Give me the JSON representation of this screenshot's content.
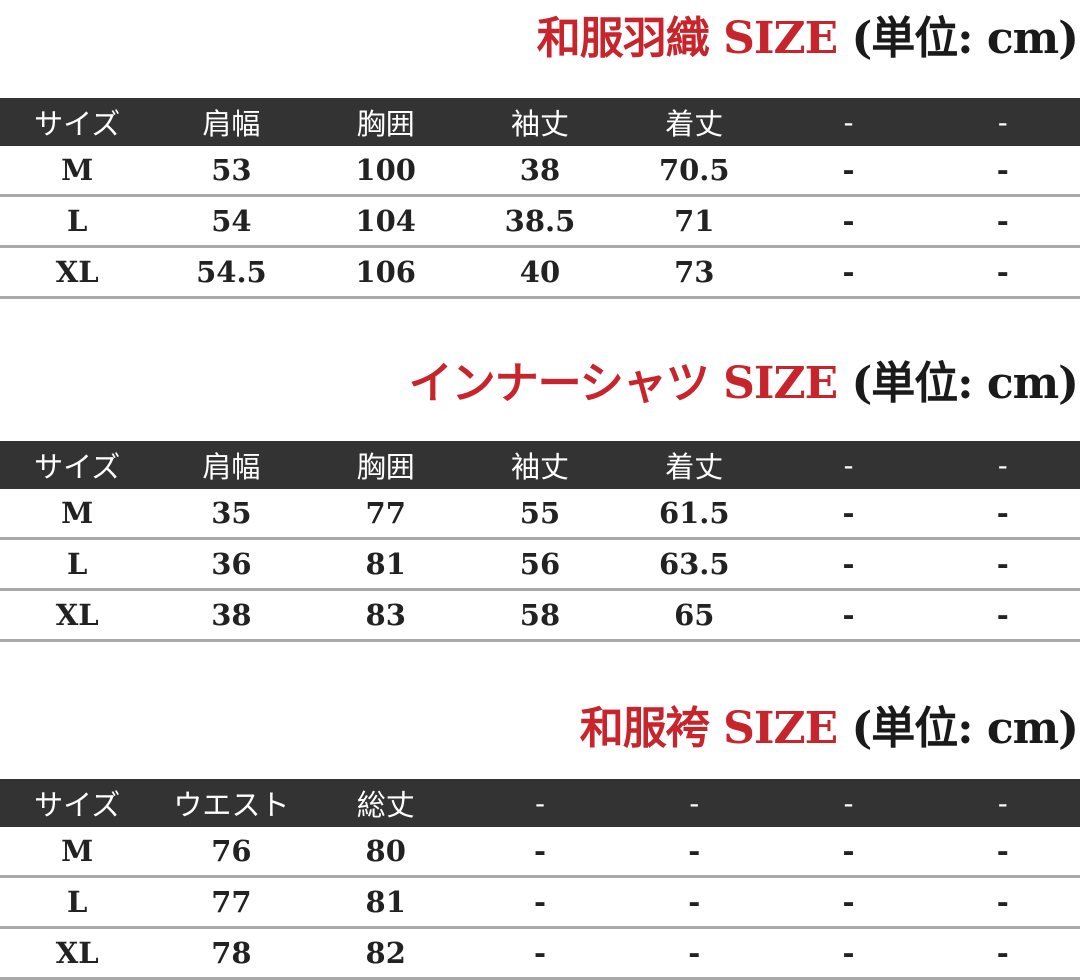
{
  "colors": {
    "title_red": "#c8242c",
    "header_bg": "#333333",
    "row_border": "#a9a9a9"
  },
  "sections": [
    {
      "title_main": "和服羽織 SIZE",
      "title_unit": "(単位: cm)",
      "headers": [
        "サイズ",
        "肩幅",
        "胸囲",
        "袖丈",
        "着丈",
        "-",
        "-"
      ],
      "rows": [
        [
          "M",
          "53",
          "100",
          "38",
          "70.5",
          "-",
          "-"
        ],
        [
          "L",
          "54",
          "104",
          "38.5",
          "71",
          "-",
          "-"
        ],
        [
          "XL",
          "54.5",
          "106",
          "40",
          "73",
          "-",
          "-"
        ]
      ]
    },
    {
      "title_main": "インナーシャツ SIZE",
      "title_unit": "(単位: cm)",
      "headers": [
        "サイズ",
        "肩幅",
        "胸囲",
        "袖丈",
        "着丈",
        "-",
        "-"
      ],
      "rows": [
        [
          "M",
          "35",
          "77",
          "55",
          "61.5",
          "-",
          "-"
        ],
        [
          "L",
          "36",
          "81",
          "56",
          "63.5",
          "-",
          "-"
        ],
        [
          "XL",
          "38",
          "83",
          "58",
          "65",
          "-",
          "-"
        ]
      ]
    },
    {
      "title_main": "和服袴 SIZE",
      "title_unit": "(単位: cm)",
      "headers": [
        "サイズ",
        "ウエスト",
        "総丈",
        "-",
        "-",
        "-",
        "-"
      ],
      "rows": [
        [
          "M",
          "76",
          "80",
          "-",
          "-",
          "-",
          "-"
        ],
        [
          "L",
          "77",
          "81",
          "-",
          "-",
          "-",
          "-"
        ],
        [
          "XL",
          "78",
          "82",
          "-",
          "-",
          "-",
          "-"
        ]
      ]
    }
  ]
}
